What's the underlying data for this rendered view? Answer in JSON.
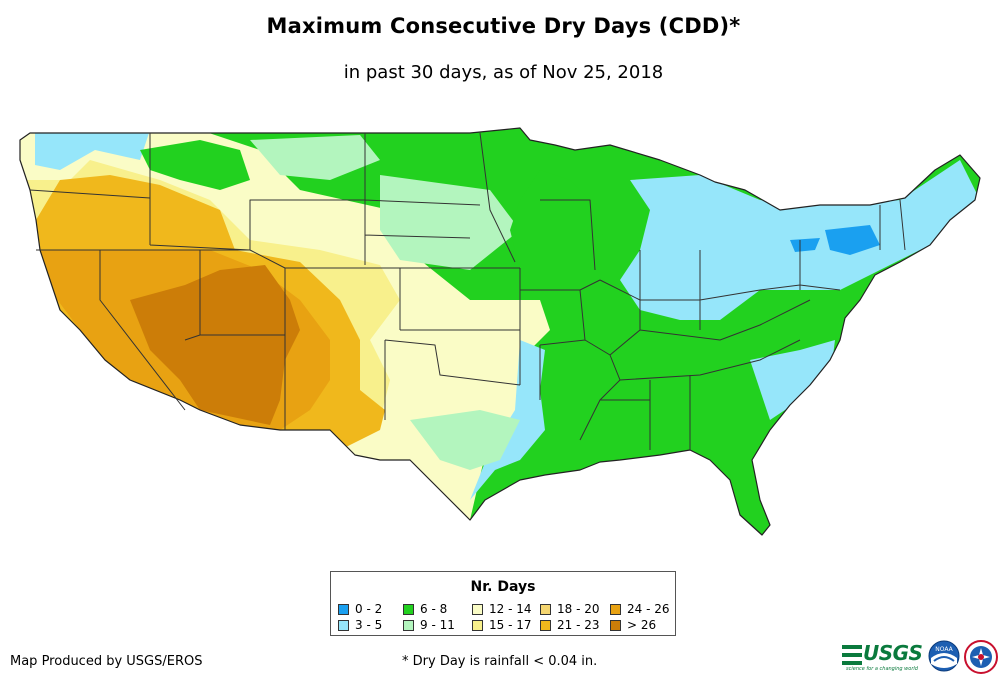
{
  "title": "Maximum Consecutive Dry Days (CDD)*",
  "subtitle": "in past 30 days, as of Nov 25, 2018",
  "legend": {
    "title": "Nr. Days",
    "items": [
      {
        "label": "0 - 2",
        "color": "#1aa0f0"
      },
      {
        "label": "3 - 5",
        "color": "#96e6fa"
      },
      {
        "label": "6 - 8",
        "color": "#22d11f"
      },
      {
        "label": "9 - 11",
        "color": "#b3f5be"
      },
      {
        "label": "12 - 14",
        "color": "#fafcc6"
      },
      {
        "label": "15 - 17",
        "color": "#f8f08c"
      },
      {
        "label": "18 - 20",
        "color": "#f5d670"
      },
      {
        "label": "21 - 23",
        "color": "#f0b81c"
      },
      {
        "label": "24 - 26",
        "color": "#e8a212"
      },
      {
        "label": "> 26",
        "color": "#cc7d08"
      }
    ]
  },
  "credit": "Map Produced by USGS/EROS",
  "footnote": "* Dry Day is rainfall < 0.04 in.",
  "logos": {
    "usgs_text": "USGS",
    "usgs_tagline": "science for a changing world",
    "noaa_text": "NOAA"
  }
}
